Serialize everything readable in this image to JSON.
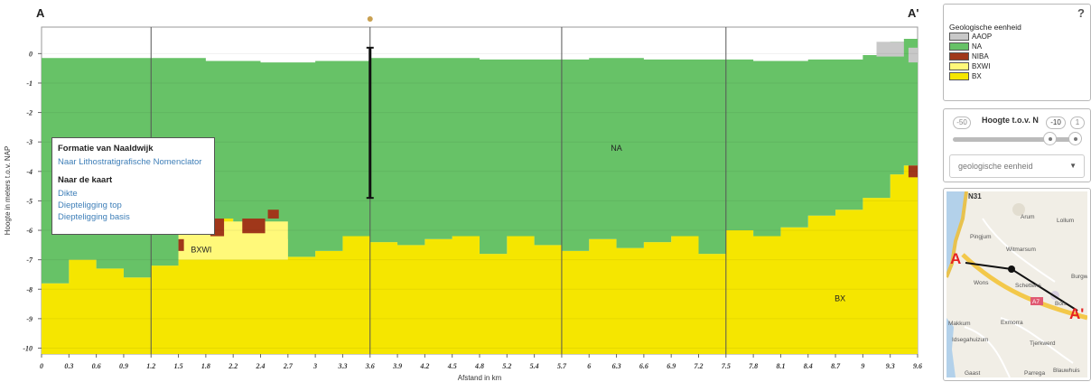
{
  "chart_data": {
    "type": "area",
    "title": "",
    "xlabel": "Afstand in km",
    "ylabel": "Hoogte in meters t.o.v. NAP",
    "x_ticks": [
      "0",
      "0.3",
      "0.6",
      "0.9",
      "1.2",
      "1.5",
      "1.8",
      "2.2",
      "2.4",
      "2.7",
      "3",
      "3.3",
      "3.6",
      "3.9",
      "4.2",
      "4.5",
      "4.8",
      "5.2",
      "5.4",
      "5.7",
      "6",
      "6.3",
      "6.6",
      "6.9",
      "7.2",
      "7.5",
      "7.8",
      "8.1",
      "8.4",
      "8.7",
      "9",
      "9.3",
      "9.6"
    ],
    "y_ticks": [
      "0",
      "-1",
      "-2",
      "-3",
      "-4",
      "-5",
      "-6",
      "-7",
      "-8",
      "-9",
      "-10"
    ],
    "xlim": [
      0,
      9.6
    ],
    "ylim": [
      -10.2,
      0.9
    ],
    "section_start_label": "A",
    "section_end_label": "A'",
    "layers": [
      {
        "name": "AAOP",
        "color": "#c8c8c8"
      },
      {
        "name": "NA",
        "color": "#67c267"
      },
      {
        "name": "NIBA",
        "color": "#a0371a"
      },
      {
        "name": "BXWI",
        "color": "#fff97a"
      },
      {
        "name": "BX",
        "color": "#f5e600"
      }
    ],
    "surface_x": [
      0,
      0.6,
      1.2,
      1.8,
      2.4,
      3.0,
      3.6,
      4.2,
      4.8,
      5.4,
      6.0,
      6.6,
      7.2,
      7.8,
      8.4,
      9.0,
      9.3,
      9.45,
      9.6
    ],
    "surface_y": [
      -0.15,
      -0.15,
      -0.15,
      -0.25,
      -0.3,
      -0.25,
      -0.15,
      -0.15,
      -0.2,
      -0.2,
      -0.15,
      -0.2,
      -0.2,
      -0.25,
      -0.2,
      -0.05,
      0.4,
      0.5,
      0.15
    ],
    "na_base_x": [
      0,
      0.3,
      0.6,
      0.9,
      1.2,
      1.5,
      1.8,
      2.1,
      2.4,
      2.7,
      3.0,
      3.3,
      3.6,
      3.9,
      4.2,
      4.5,
      4.8,
      5.1,
      5.4,
      5.7,
      6.0,
      6.3,
      6.6,
      6.9,
      7.2,
      7.5,
      7.8,
      8.1,
      8.4,
      8.7,
      9.0,
      9.3,
      9.45,
      9.6
    ],
    "na_base_y": [
      -7.8,
      -7.0,
      -7.3,
      -7.6,
      -7.2,
      -6.6,
      -5.6,
      -5.9,
      -6.3,
      -6.9,
      -6.7,
      -6.2,
      -6.4,
      -6.5,
      -6.3,
      -6.2,
      -6.8,
      -6.2,
      -6.5,
      -6.7,
      -6.3,
      -6.6,
      -6.4,
      -6.2,
      -6.8,
      -6.0,
      -6.2,
      -5.9,
      -5.5,
      -5.3,
      -4.9,
      -4.1,
      -3.8,
      -4.3
    ],
    "bxwi_lens": {
      "x_from": 1.5,
      "x_to": 2.7,
      "top": -5.7,
      "bottom": -7.0
    },
    "niba_spots": [
      {
        "x_from": 1.5,
        "x_to": 1.56,
        "top": -6.3,
        "bottom": -6.7
      },
      {
        "x_from": 1.85,
        "x_to": 2.0,
        "top": -5.6,
        "bottom": -6.2
      },
      {
        "x_from": 2.2,
        "x_to": 2.45,
        "top": -5.6,
        "bottom": -6.1
      },
      {
        "x_from": 2.48,
        "x_to": 2.6,
        "top": -5.3,
        "bottom": -5.6
      },
      {
        "x_from": 9.5,
        "x_to": 9.6,
        "top": -3.8,
        "bottom": -4.2
      }
    ],
    "aaop_patches": [
      {
        "x_from": 9.15,
        "x_to": 9.45,
        "top": 0.4,
        "bottom": -0.1
      },
      {
        "x_from": 9.5,
        "x_to": 9.6,
        "top": 0.2,
        "bottom": -0.3
      }
    ],
    "annotations": [
      {
        "text": "NA",
        "x": 6.3,
        "y": -3.3
      },
      {
        "text": "BXWI",
        "x": 1.75,
        "y": -6.75
      },
      {
        "text": "BX",
        "x": 8.75,
        "y": -8.4
      }
    ],
    "marker": {
      "x": 3.6,
      "y_top": 0.2,
      "y_bottom": -4.9
    },
    "section_lines_x": [
      1.2,
      3.6,
      5.7,
      7.5
    ]
  },
  "popup": {
    "title": "Formatie van Naaldwijk",
    "link_nomenclator": "Naar Lithostratigrafische Nomenclator",
    "map_heading": "Naar de kaart",
    "link_dikte": "Dikte",
    "link_top": "Diepteligging top",
    "link_basis": "Diepteligging basis"
  },
  "legend": {
    "title": "Geologische eenheid",
    "help_symbol": "?",
    "items": [
      {
        "label": "AAOP",
        "color": "#c8c8c8"
      },
      {
        "label": "NA",
        "color": "#67c267"
      },
      {
        "label": "NIBA",
        "color": "#a0371a"
      },
      {
        "label": "BXWI",
        "color": "#fff97a"
      },
      {
        "label": "BX",
        "color": "#f5e600"
      }
    ]
  },
  "controls": {
    "min_value": "-50",
    "height_label": "Hoogte t.o.v. N",
    "current_value": "-10",
    "max_value": "1",
    "select_value": "geologische eenheid",
    "select_caret": "▼"
  },
  "map": {
    "road_label": "N31",
    "route_badge": "A7",
    "start_label": "A",
    "end_label": "A'",
    "places": [
      "Arum",
      "Lollum",
      "Pingjum",
      "Witmarsum",
      "Burgw",
      "Wons",
      "Schettens",
      "Bols",
      "Makkum",
      "Exmorra",
      "Idsegahuizum",
      "Tjerkwerd",
      "Gaast",
      "Parrega",
      "Blauwhuis"
    ]
  }
}
